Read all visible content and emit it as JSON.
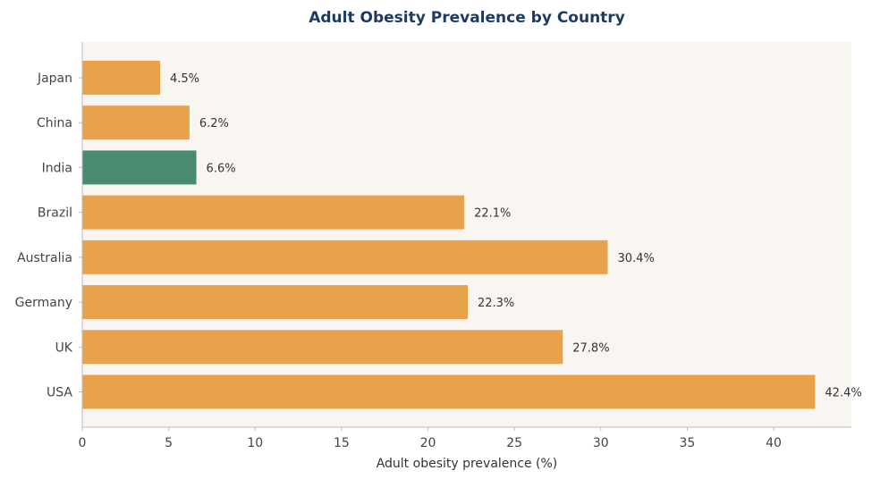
{
  "chart_data": {
    "type": "bar",
    "orientation": "horizontal",
    "title": "Adult Obesity Prevalence by Country",
    "xlabel": "Adult obesity prevalence (%)",
    "ylabel": "",
    "categories": [
      "Japan",
      "China",
      "India",
      "Brazil",
      "Australia",
      "Germany",
      "UK",
      "USA"
    ],
    "values": [
      4.5,
      6.2,
      6.6,
      22.1,
      30.4,
      22.3,
      27.8,
      42.4
    ],
    "value_labels": [
      "4.5%",
      "6.2%",
      "6.6%",
      "22.1%",
      "30.4%",
      "22.3%",
      "27.8%",
      "42.4%"
    ],
    "highlight_category": "India",
    "xlim": [
      0,
      44.5
    ],
    "xticks": [
      0,
      5,
      10,
      15,
      20,
      25,
      30,
      35,
      40
    ],
    "grid": false,
    "legend": "none"
  },
  "colors": {
    "bar": "#e8a24c",
    "highlight": "#4a8a6e",
    "plot_bg": "#f9f6f2",
    "axis": "#bbbbbb",
    "title": "#1f3a5f"
  }
}
